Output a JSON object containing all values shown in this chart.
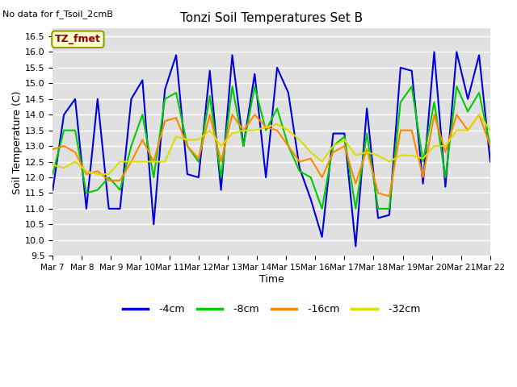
{
  "title": "Tonzi Soil Temperatures Set B",
  "no_data_text": "No data for f_Tsoil_2cmB",
  "legend_label": "TZ_fmet",
  "xlabel": "Time",
  "ylabel": "Soil Temperature (C)",
  "ylim": [
    9.5,
    16.75
  ],
  "xtick_labels": [
    "Mar 7",
    "Mar 8",
    "Mar 9",
    "Mar 10",
    "Mar 11",
    "Mar 12",
    "Mar 13",
    "Mar 14",
    "Mar 15",
    "Mar 16",
    "Mar 17",
    "Mar 18",
    "Mar 19",
    "Mar 20",
    "Mar 21",
    "Mar 22"
  ],
  "colors": {
    "4cm": "#0000dd",
    "8cm": "#00cc00",
    "16cm": "#ff8800",
    "32cm": "#dddd00"
  },
  "background_color": "#e0e0e0",
  "series_4cm": [
    11.6,
    14.0,
    14.5,
    11.0,
    14.5,
    11.0,
    11.0,
    14.5,
    15.1,
    10.5,
    14.8,
    15.9,
    12.1,
    12.0,
    15.4,
    11.6,
    15.9,
    13.0,
    15.3,
    12.0,
    15.5,
    14.7,
    12.3,
    11.3,
    10.1,
    13.4,
    13.4,
    9.8,
    14.2,
    10.7,
    10.8,
    15.5,
    15.4,
    11.8,
    16.0,
    11.7,
    16.0,
    14.5,
    15.9,
    12.5
  ],
  "series_8cm": [
    12.1,
    13.5,
    13.5,
    11.5,
    11.6,
    12.0,
    11.6,
    13.0,
    14.0,
    12.0,
    14.5,
    14.7,
    13.0,
    12.5,
    14.6,
    12.0,
    14.9,
    13.0,
    14.9,
    13.5,
    14.2,
    13.0,
    12.2,
    12.0,
    11.0,
    13.0,
    13.3,
    11.0,
    13.4,
    11.0,
    11.0,
    14.4,
    14.9,
    12.5,
    14.4,
    12.0,
    14.9,
    14.1,
    14.7,
    13.0
  ],
  "series_16cm": [
    12.9,
    13.0,
    12.8,
    12.1,
    12.2,
    11.9,
    11.9,
    12.5,
    13.2,
    12.5,
    13.8,
    13.9,
    13.0,
    12.6,
    14.0,
    12.5,
    14.0,
    13.5,
    14.0,
    13.6,
    13.5,
    13.0,
    12.5,
    12.6,
    12.0,
    12.8,
    13.0,
    11.8,
    12.9,
    11.5,
    11.4,
    13.5,
    13.5,
    12.0,
    14.0,
    12.8,
    14.0,
    13.5,
    14.0,
    13.0
  ],
  "series_32cm": [
    12.4,
    12.3,
    12.5,
    12.2,
    12.1,
    12.1,
    12.5,
    12.5,
    12.5,
    12.5,
    12.5,
    13.3,
    13.2,
    13.2,
    13.5,
    13.0,
    13.4,
    13.5,
    13.5,
    13.6,
    13.7,
    13.5,
    13.2,
    12.8,
    12.5,
    13.0,
    13.2,
    12.7,
    12.8,
    12.7,
    12.5,
    12.7,
    12.7,
    12.6,
    13.0,
    13.0,
    13.5,
    13.5,
    14.0,
    13.5
  ]
}
